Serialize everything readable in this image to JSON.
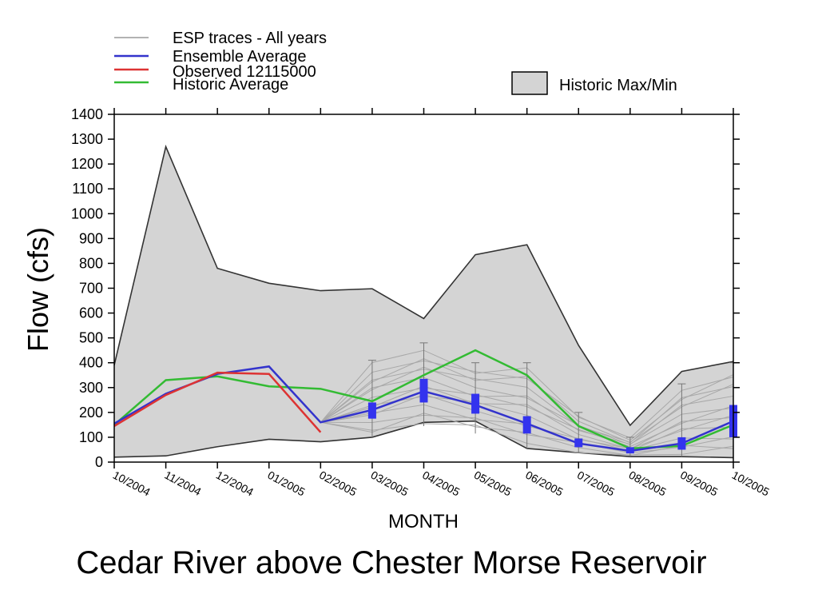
{
  "chart_data": {
    "type": "line",
    "title": "Cedar River above Chester Morse Reservoir",
    "xlabel": "MONTH",
    "ylabel": "Flow (cfs)",
    "ylim": [
      0,
      1400
    ],
    "yticks": [
      0,
      100,
      200,
      300,
      400,
      500,
      600,
      700,
      800,
      900,
      1000,
      1100,
      1200,
      1300,
      1400
    ],
    "categories": [
      "10/2004",
      "11/2004",
      "12/2004",
      "01/2005",
      "02/2005",
      "03/2005",
      "04/2005",
      "05/2005",
      "06/2005",
      "07/2005",
      "08/2005",
      "09/2005",
      "10/2005"
    ],
    "grid": false,
    "legend": {
      "position": "top",
      "entries": [
        {
          "label": "ESP traces - All years",
          "color": "#999999"
        },
        {
          "label": "Ensemble Average",
          "color": "#3333cc"
        },
        {
          "label": "Observed 12115000",
          "color": "#dd3333"
        },
        {
          "label": "Historic Average",
          "color": "#33bb33"
        },
        {
          "label": "Historic Max/Min",
          "color": "#d4d4d4"
        }
      ]
    },
    "historic_max": [
      390,
      1270,
      780,
      720,
      690,
      698,
      578,
      835,
      875,
      470,
      148,
      365,
      405
    ],
    "historic_min": [
      20,
      25,
      62,
      92,
      82,
      100,
      160,
      165,
      55,
      38,
      22,
      22,
      18
    ],
    "series": [
      {
        "name": "Historic Average",
        "color": "#33bb33",
        "values": [
          150,
          330,
          345,
          305,
          295,
          245,
          350,
          450,
          350,
          145,
          55,
          65,
          150
        ]
      },
      {
        "name": "Ensemble Average",
        "color": "#3333cc",
        "values": [
          155,
          275,
          355,
          385,
          160,
          210,
          285,
          230,
          155,
          75,
          45,
          75,
          165
        ]
      },
      {
        "name": "Observed 12115000",
        "color": "#dd3333",
        "values": [
          145,
          270,
          360,
          355,
          120,
          null,
          null,
          null,
          null,
          null,
          null,
          null,
          null
        ]
      }
    ],
    "esp_range": {
      "start_index": 4,
      "max": [
        160,
        410,
        480,
        400,
        400,
        200,
        100,
        315,
        400
      ],
      "min": [
        160,
        100,
        145,
        115,
        55,
        38,
        22,
        22,
        18
      ]
    },
    "boxes": [
      {
        "month": "03/2005",
        "low": 175,
        "high": 240
      },
      {
        "month": "04/2005",
        "low": 240,
        "high": 335
      },
      {
        "month": "05/2005",
        "low": 195,
        "high": 275
      },
      {
        "month": "06/2005",
        "low": 115,
        "high": 185
      },
      {
        "month": "07/2005",
        "low": 60,
        "high": 95
      },
      {
        "month": "08/2005",
        "low": 35,
        "high": 60
      },
      {
        "month": "09/2005",
        "low": 50,
        "high": 100
      },
      {
        "month": "10/2005",
        "low": 100,
        "high": 230
      }
    ]
  }
}
